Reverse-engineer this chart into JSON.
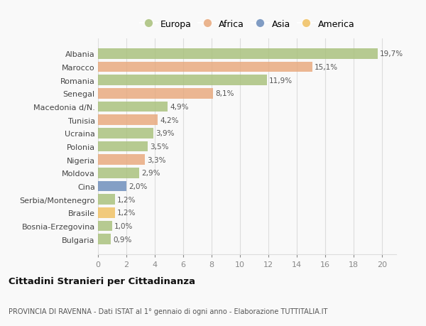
{
  "categories": [
    "Albania",
    "Marocco",
    "Romania",
    "Senegal",
    "Macedonia d/N.",
    "Tunisia",
    "Ucraina",
    "Polonia",
    "Nigeria",
    "Moldova",
    "Cina",
    "Serbia/Montenegro",
    "Brasile",
    "Bosnia-Erzegovina",
    "Bulgaria"
  ],
  "values": [
    19.7,
    15.1,
    11.9,
    8.1,
    4.9,
    4.2,
    3.9,
    3.5,
    3.3,
    2.9,
    2.0,
    1.2,
    1.2,
    1.0,
    0.9
  ],
  "labels": [
    "19,7%",
    "15,1%",
    "11,9%",
    "8,1%",
    "4,9%",
    "4,2%",
    "3,9%",
    "3,5%",
    "3,3%",
    "2,9%",
    "2,0%",
    "1,2%",
    "1,2%",
    "1,0%",
    "0,9%"
  ],
  "colors": [
    "#a8c07a",
    "#e8a87c",
    "#a8c07a",
    "#e8a87c",
    "#a8c07a",
    "#e8a87c",
    "#a8c07a",
    "#a8c07a",
    "#e8a87c",
    "#a8c07a",
    "#6b8cba",
    "#a8c07a",
    "#f0c060",
    "#a8c07a",
    "#a8c07a"
  ],
  "legend_labels": [
    "Europa",
    "Africa",
    "Asia",
    "America"
  ],
  "legend_colors": [
    "#a8c07a",
    "#e8a87c",
    "#6b8cba",
    "#f0c060"
  ],
  "title": "Cittadini Stranieri per Cittadinanza",
  "subtitle": "PROVINCIA DI RAVENNA - Dati ISTAT al 1° gennaio di ogni anno - Elaborazione TUTTITALIA.IT",
  "xlim": [
    0,
    21
  ],
  "xticks": [
    0,
    2,
    4,
    6,
    8,
    10,
    12,
    14,
    16,
    18,
    20
  ],
  "bg_color": "#f9f9f9",
  "grid_color": "#dddddd"
}
